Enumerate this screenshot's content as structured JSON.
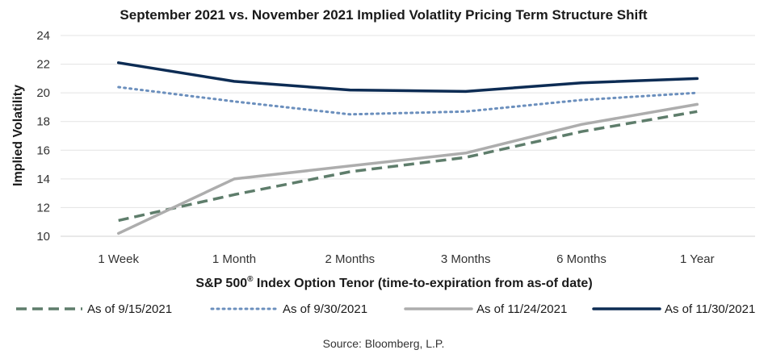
{
  "chart_data": {
    "type": "line",
    "title": "September 2021 vs. November 2021 Implied Volatlity Pricing Term Structure Shift",
    "xlabel_main": "S&P 500",
    "xlabel_sup": "®",
    "xlabel_rest": " Index Option Tenor (time-to-expiration from as-of date)",
    "ylabel": "Implied Volatility",
    "categories": [
      "1 Week",
      "1 Month",
      "2 Months",
      "3 Months",
      "6 Months",
      "1 Year"
    ],
    "ylim": [
      10,
      24
    ],
    "yticks": [
      10,
      12,
      14,
      16,
      18,
      20,
      22,
      24
    ],
    "grid": "horizontal",
    "legend_position": "bottom",
    "series": [
      {
        "name": "As of 9/15/2021",
        "values": [
          11.1,
          12.9,
          14.5,
          15.5,
          17.3,
          18.7
        ],
        "color": "#5e7d6b",
        "style": "dashed"
      },
      {
        "name": "As of 9/30/2021",
        "values": [
          20.4,
          19.4,
          18.5,
          18.7,
          19.5,
          20.0
        ],
        "color": "#6b8fbd",
        "style": "dotted"
      },
      {
        "name": "As of 11/24/2021",
        "values": [
          10.2,
          14.0,
          14.9,
          15.8,
          17.8,
          19.2
        ],
        "color": "#adadad",
        "style": "solid"
      },
      {
        "name": "As of 11/30/2021",
        "values": [
          22.1,
          20.8,
          20.2,
          20.1,
          20.7,
          21.0
        ],
        "color": "#0d2c54",
        "style": "solid"
      }
    ],
    "source": "Source: Bloomberg, L.P."
  }
}
